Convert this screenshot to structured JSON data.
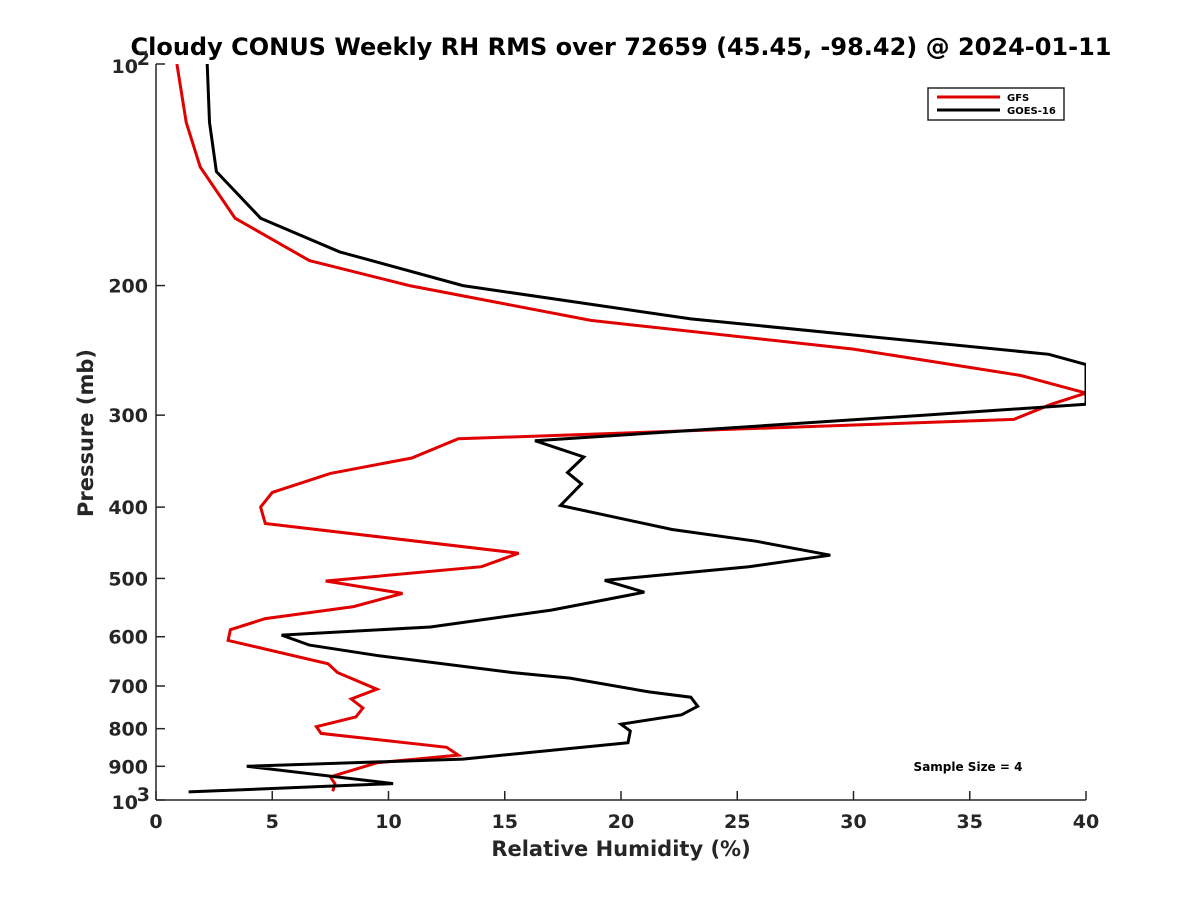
{
  "chart_data": {
    "type": "line",
    "title": "Cloudy CONUS Weekly RH RMS over 72659 (45.45, -98.42) @ 2024-01-11",
    "xlabel": "Relative Humidity (%)",
    "ylabel": "Pressure (mb)",
    "xlim": [
      0,
      40
    ],
    "ylim": [
      100,
      1000
    ],
    "yscale": "log",
    "yreversed": true,
    "grid": false,
    "legend_position": "top-right",
    "x_ticks": [
      "0",
      "5",
      "10",
      "15",
      "20",
      "25",
      "30",
      "35",
      "40"
    ],
    "y_ticks": [
      {
        "value": 100,
        "base": "10",
        "exp": "2"
      },
      {
        "value": 200,
        "label": "200"
      },
      {
        "value": 300,
        "label": "300"
      },
      {
        "value": 400,
        "label": "400"
      },
      {
        "value": 500,
        "label": "500"
      },
      {
        "value": 600,
        "label": "600"
      },
      {
        "value": 700,
        "label": "700"
      },
      {
        "value": 800,
        "label": "800"
      },
      {
        "value": 900,
        "label": "900"
      },
      {
        "value": 1000,
        "base": "10",
        "exp": "3"
      }
    ],
    "annotation": "Sample Size = 4",
    "series": [
      {
        "name": "GFS",
        "color": "#e00000",
        "points": [
          [
            0.9,
            100
          ],
          [
            1.3,
            120
          ],
          [
            1.9,
            138
          ],
          [
            3.4,
            162
          ],
          [
            6.6,
            185
          ],
          [
            10.9,
            200
          ],
          [
            18.7,
            223
          ],
          [
            30.0,
            244
          ],
          [
            37.2,
            265
          ],
          [
            40.0,
            280
          ],
          [
            38.5,
            290
          ],
          [
            36.9,
            304
          ],
          [
            13.0,
            323
          ],
          [
            11.0,
            343
          ],
          [
            7.5,
            360
          ],
          [
            5.0,
            382
          ],
          [
            4.5,
            400
          ],
          [
            4.7,
            421
          ],
          [
            15.6,
            462
          ],
          [
            14.0,
            482
          ],
          [
            7.3,
            504
          ],
          [
            10.6,
            524
          ],
          [
            8.5,
            546
          ],
          [
            4.7,
            567
          ],
          [
            3.2,
            587
          ],
          [
            3.1,
            607
          ],
          [
            7.4,
            653
          ],
          [
            7.8,
            671
          ],
          [
            9.5,
            707
          ],
          [
            8.4,
            729
          ],
          [
            8.9,
            750
          ],
          [
            8.6,
            771
          ],
          [
            6.9,
            795
          ],
          [
            7.1,
            812
          ],
          [
            12.5,
            848
          ],
          [
            13.0,
            869
          ],
          [
            9.5,
            890
          ],
          [
            7.5,
            930
          ],
          [
            7.7,
            951
          ],
          [
            7.6,
            973
          ]
        ]
      },
      {
        "name": "GOES-16",
        "color": "#000000",
        "points": [
          [
            2.2,
            100
          ],
          [
            2.3,
            120
          ],
          [
            2.6,
            140
          ],
          [
            4.5,
            162
          ],
          [
            7.9,
            180
          ],
          [
            13.2,
            200
          ],
          [
            23.0,
            222
          ],
          [
            38.4,
            248
          ],
          [
            40.0,
            256
          ],
          [
            40.0,
            290
          ],
          [
            33.0,
            300
          ],
          [
            16.3,
            325
          ],
          [
            18.4,
            342
          ],
          [
            17.7,
            359
          ],
          [
            18.3,
            372
          ],
          [
            17.4,
            398
          ],
          [
            22.2,
            429
          ],
          [
            25.8,
            445
          ],
          [
            29.0,
            465
          ],
          [
            25.5,
            482
          ],
          [
            19.3,
            503
          ],
          [
            21.0,
            522
          ],
          [
            17.0,
            552
          ],
          [
            11.8,
            582
          ],
          [
            5.4,
            597
          ],
          [
            6.6,
            616
          ],
          [
            9.6,
            637
          ],
          [
            15.3,
            671
          ],
          [
            17.8,
            683
          ],
          [
            21.2,
            713
          ],
          [
            23.0,
            725
          ],
          [
            23.3,
            746
          ],
          [
            22.6,
            766
          ],
          [
            20.0,
            789
          ],
          [
            20.4,
            806
          ],
          [
            20.3,
            836
          ],
          [
            13.2,
            880
          ],
          [
            3.9,
            900
          ],
          [
            10.2,
            950
          ],
          [
            1.4,
            975
          ]
        ]
      }
    ]
  }
}
